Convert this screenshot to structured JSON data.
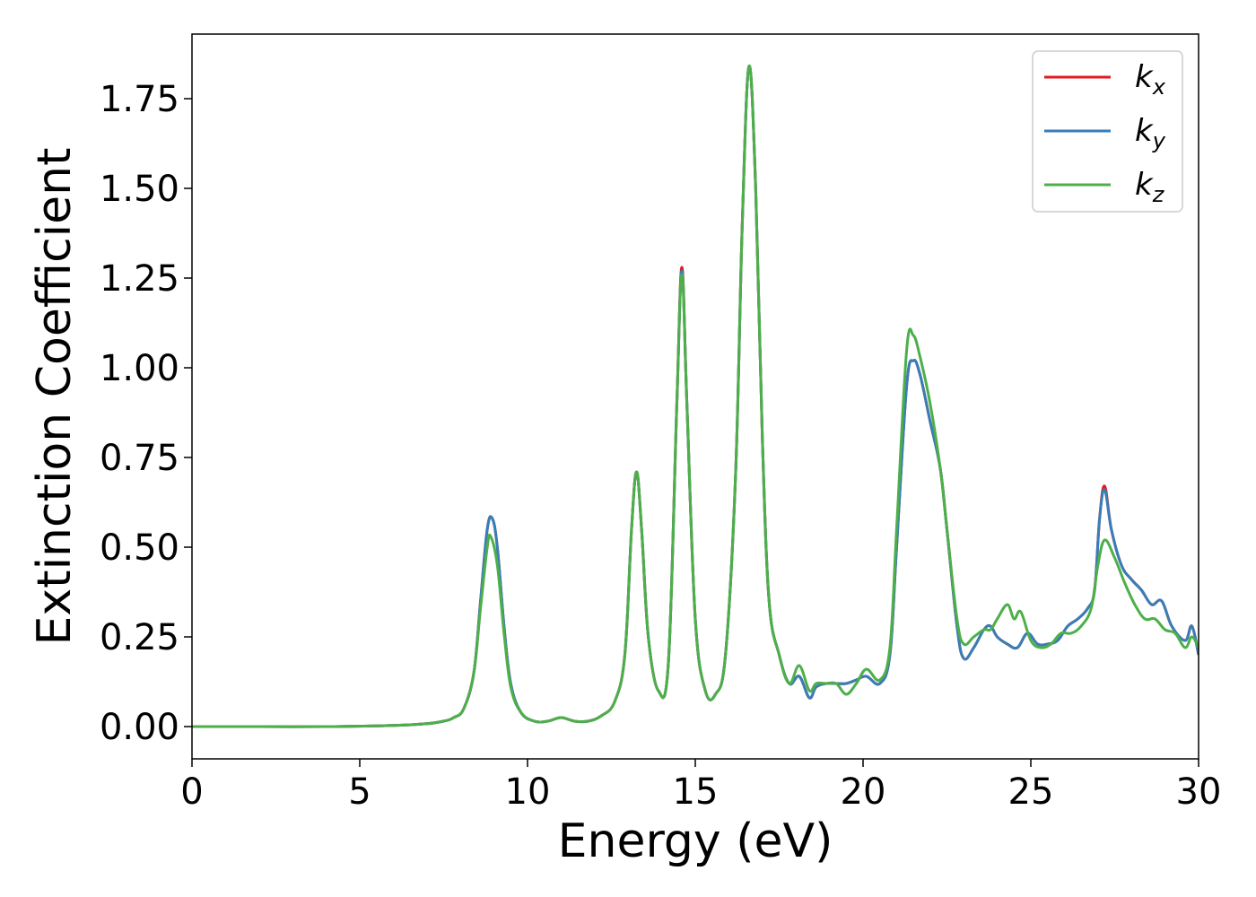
{
  "chart_data": {
    "type": "line",
    "xlabel": "Energy (eV)",
    "ylabel": "Extinction Coefficient",
    "xlim": [
      0,
      30
    ],
    "ylim": [
      -0.09,
      1.93
    ],
    "xticks": [
      0,
      5,
      10,
      15,
      20,
      25,
      30
    ],
    "xtick_labels": [
      "0",
      "5",
      "10",
      "15",
      "20",
      "25",
      "30"
    ],
    "yticks": [
      0.0,
      0.25,
      0.5,
      0.75,
      1.0,
      1.25,
      1.5,
      1.75
    ],
    "ytick_labels": [
      "0.00",
      "0.25",
      "0.50",
      "0.75",
      "1.00",
      "1.25",
      "1.50",
      "1.75"
    ],
    "grid": false,
    "legend_position": "top-right",
    "series": [
      {
        "name": "k_x",
        "base": "k",
        "sub": "x",
        "color": "#e41a1c",
        "x": [
          0,
          2,
          4,
          6,
          7,
          7.5,
          7.8,
          8.1,
          8.4,
          8.6,
          8.8,
          8.95,
          9.1,
          9.3,
          9.5,
          9.8,
          10.2,
          10.6,
          11.0,
          11.4,
          11.8,
          12.2,
          12.6,
          12.9,
          13.1,
          13.25,
          13.4,
          13.6,
          13.9,
          14.2,
          14.45,
          14.6,
          14.75,
          15.0,
          15.3,
          15.6,
          15.9,
          16.2,
          16.4,
          16.6,
          16.8,
          17.0,
          17.2,
          17.5,
          17.8,
          18.1,
          18.4,
          18.6,
          18.9,
          19.2,
          19.5,
          19.8,
          20.1,
          20.5,
          20.8,
          21.0,
          21.3,
          21.5,
          21.7,
          22.0,
          22.3,
          22.5,
          22.8,
          23.0,
          23.3,
          23.6,
          23.8,
          24.0,
          24.3,
          24.6,
          24.9,
          25.2,
          25.5,
          25.8,
          26.1,
          26.4,
          26.7,
          26.9,
          27.05,
          27.2,
          27.4,
          27.7,
          28.0,
          28.3,
          28.6,
          28.9,
          29.2,
          29.6,
          29.8,
          30.0
        ],
        "y": [
          0.0,
          0.0,
          0.0,
          0.003,
          0.008,
          0.015,
          0.025,
          0.05,
          0.15,
          0.35,
          0.55,
          0.58,
          0.5,
          0.28,
          0.12,
          0.04,
          0.015,
          0.015,
          0.025,
          0.015,
          0.015,
          0.03,
          0.07,
          0.2,
          0.55,
          0.71,
          0.55,
          0.25,
          0.1,
          0.18,
          0.9,
          1.28,
          0.9,
          0.3,
          0.1,
          0.09,
          0.2,
          0.7,
          1.4,
          1.84,
          1.5,
          0.8,
          0.35,
          0.2,
          0.12,
          0.14,
          0.08,
          0.11,
          0.12,
          0.12,
          0.12,
          0.13,
          0.14,
          0.12,
          0.2,
          0.5,
          0.95,
          1.02,
          0.98,
          0.85,
          0.72,
          0.55,
          0.28,
          0.19,
          0.22,
          0.27,
          0.28,
          0.25,
          0.23,
          0.22,
          0.26,
          0.23,
          0.23,
          0.24,
          0.28,
          0.3,
          0.33,
          0.38,
          0.58,
          0.67,
          0.55,
          0.45,
          0.41,
          0.38,
          0.34,
          0.35,
          0.28,
          0.24,
          0.28,
          0.2
        ]
      },
      {
        "name": "k_y",
        "base": "k",
        "sub": "y",
        "color": "#377eb8",
        "x": [
          0,
          2,
          4,
          6,
          7,
          7.5,
          7.8,
          8.1,
          8.4,
          8.6,
          8.8,
          8.95,
          9.1,
          9.3,
          9.5,
          9.8,
          10.2,
          10.6,
          11.0,
          11.4,
          11.8,
          12.2,
          12.6,
          12.9,
          13.1,
          13.25,
          13.4,
          13.6,
          13.9,
          14.2,
          14.45,
          14.6,
          14.75,
          15.0,
          15.3,
          15.6,
          15.9,
          16.2,
          16.4,
          16.6,
          16.8,
          17.0,
          17.2,
          17.5,
          17.8,
          18.1,
          18.4,
          18.6,
          18.9,
          19.2,
          19.5,
          19.8,
          20.1,
          20.5,
          20.8,
          21.0,
          21.3,
          21.5,
          21.7,
          22.0,
          22.3,
          22.5,
          22.8,
          23.0,
          23.3,
          23.6,
          23.8,
          24.0,
          24.3,
          24.6,
          24.9,
          25.2,
          25.5,
          25.8,
          26.1,
          26.4,
          26.7,
          26.9,
          27.05,
          27.2,
          27.4,
          27.7,
          28.0,
          28.3,
          28.6,
          28.9,
          29.2,
          29.6,
          29.8,
          30.0
        ],
        "y": [
          0.0,
          0.0,
          0.0,
          0.003,
          0.008,
          0.015,
          0.025,
          0.05,
          0.15,
          0.35,
          0.55,
          0.58,
          0.5,
          0.28,
          0.12,
          0.04,
          0.015,
          0.015,
          0.025,
          0.015,
          0.015,
          0.03,
          0.07,
          0.2,
          0.55,
          0.71,
          0.55,
          0.25,
          0.1,
          0.18,
          0.9,
          1.27,
          0.9,
          0.3,
          0.1,
          0.09,
          0.2,
          0.7,
          1.4,
          1.84,
          1.5,
          0.8,
          0.35,
          0.2,
          0.12,
          0.14,
          0.08,
          0.11,
          0.12,
          0.12,
          0.12,
          0.13,
          0.14,
          0.12,
          0.2,
          0.5,
          0.95,
          1.02,
          0.98,
          0.85,
          0.72,
          0.55,
          0.28,
          0.19,
          0.22,
          0.27,
          0.28,
          0.25,
          0.23,
          0.22,
          0.26,
          0.23,
          0.23,
          0.24,
          0.28,
          0.3,
          0.33,
          0.38,
          0.58,
          0.66,
          0.55,
          0.45,
          0.41,
          0.38,
          0.34,
          0.35,
          0.28,
          0.24,
          0.28,
          0.2
        ]
      },
      {
        "name": "k_z",
        "base": "k",
        "sub": "z",
        "color": "#4daf4a",
        "x": [
          0,
          2,
          4,
          6,
          7,
          7.5,
          7.8,
          8.1,
          8.4,
          8.6,
          8.8,
          8.9,
          9.1,
          9.3,
          9.5,
          9.8,
          10.2,
          10.6,
          11.0,
          11.4,
          11.8,
          12.2,
          12.6,
          12.9,
          13.1,
          13.25,
          13.4,
          13.6,
          13.9,
          14.2,
          14.45,
          14.6,
          14.75,
          15.0,
          15.3,
          15.6,
          15.9,
          16.2,
          16.4,
          16.6,
          16.8,
          17.0,
          17.2,
          17.5,
          17.8,
          18.1,
          18.4,
          18.6,
          18.9,
          19.2,
          19.5,
          19.8,
          20.1,
          20.5,
          20.8,
          21.0,
          21.3,
          21.5,
          21.7,
          22.0,
          22.3,
          22.5,
          22.8,
          23.0,
          23.3,
          23.6,
          23.8,
          24.0,
          24.3,
          24.5,
          24.7,
          25.0,
          25.3,
          25.6,
          25.9,
          26.2,
          26.5,
          26.8,
          27.0,
          27.2,
          27.5,
          27.8,
          28.1,
          28.4,
          28.7,
          29.0,
          29.3,
          29.6,
          29.8,
          30.0
        ],
        "y": [
          0.0,
          0.0,
          0.0,
          0.003,
          0.008,
          0.015,
          0.025,
          0.05,
          0.15,
          0.33,
          0.5,
          0.53,
          0.45,
          0.26,
          0.11,
          0.04,
          0.015,
          0.015,
          0.025,
          0.015,
          0.015,
          0.03,
          0.07,
          0.2,
          0.55,
          0.71,
          0.55,
          0.25,
          0.1,
          0.18,
          0.9,
          1.26,
          0.9,
          0.3,
          0.1,
          0.09,
          0.2,
          0.7,
          1.4,
          1.84,
          1.5,
          0.8,
          0.35,
          0.2,
          0.12,
          0.17,
          0.1,
          0.12,
          0.12,
          0.12,
          0.09,
          0.12,
          0.16,
          0.13,
          0.22,
          0.55,
          1.05,
          1.09,
          1.03,
          0.9,
          0.72,
          0.55,
          0.3,
          0.23,
          0.25,
          0.27,
          0.27,
          0.3,
          0.34,
          0.3,
          0.32,
          0.24,
          0.22,
          0.23,
          0.26,
          0.26,
          0.28,
          0.33,
          0.45,
          0.52,
          0.47,
          0.4,
          0.34,
          0.3,
          0.3,
          0.27,
          0.26,
          0.22,
          0.25,
          0.22
        ]
      }
    ]
  }
}
